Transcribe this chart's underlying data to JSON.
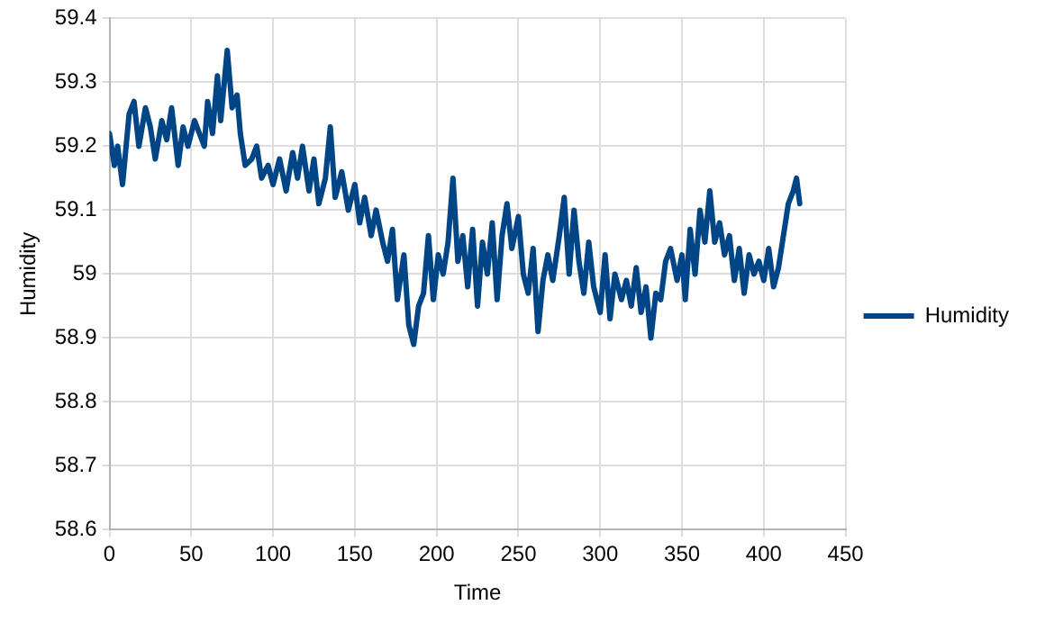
{
  "chart_data": {
    "type": "line",
    "xlabel": "Time",
    "ylabel": "Humidity",
    "xlim": [
      0,
      450
    ],
    "xticks": [
      0,
      50,
      100,
      150,
      200,
      250,
      300,
      350,
      400,
      450
    ],
    "ylim": [
      58.6,
      59.4
    ],
    "yticks": [
      58.6,
      58.7,
      58.8,
      58.9,
      59,
      59.1,
      59.2,
      59.3,
      59.4
    ],
    "grid": true,
    "legend": "right",
    "marker": "none",
    "line_style": "solid",
    "series": [
      {
        "name": "Humidity",
        "color": "#004586",
        "x": [
          0,
          3,
          5,
          8,
          12,
          15,
          18,
          22,
          25,
          28,
          32,
          35,
          38,
          42,
          45,
          48,
          52,
          55,
          58,
          60,
          63,
          66,
          68,
          72,
          75,
          78,
          80,
          83,
          87,
          90,
          93,
          97,
          100,
          104,
          108,
          112,
          115,
          118,
          122,
          125,
          128,
          132,
          135,
          138,
          142,
          146,
          150,
          153,
          156,
          160,
          163,
          167,
          170,
          173,
          176,
          180,
          183,
          186,
          189,
          192,
          195,
          198,
          201,
          204,
          207,
          210,
          213,
          216,
          219,
          222,
          225,
          228,
          231,
          234,
          237,
          240,
          243,
          246,
          250,
          253,
          256,
          259,
          262,
          265,
          268,
          271,
          275,
          278,
          281,
          284,
          287,
          290,
          293,
          296,
          300,
          303,
          306,
          309,
          313,
          316,
          319,
          322,
          325,
          328,
          331,
          334,
          337,
          340,
          343,
          347,
          350,
          352,
          355,
          358,
          361,
          364,
          367,
          370,
          373,
          376,
          379,
          382,
          385,
          388,
          391,
          394,
          397,
          400,
          403,
          406,
          409,
          412,
          415,
          418,
          420,
          422
        ],
        "values": [
          59.22,
          59.17,
          59.2,
          59.14,
          59.25,
          59.27,
          59.2,
          59.26,
          59.23,
          59.18,
          59.24,
          59.21,
          59.26,
          59.17,
          59.23,
          59.2,
          59.24,
          59.22,
          59.2,
          59.27,
          59.22,
          59.31,
          59.24,
          59.35,
          59.26,
          59.28,
          59.22,
          59.17,
          59.18,
          59.2,
          59.15,
          59.17,
          59.14,
          59.18,
          59.13,
          59.19,
          59.15,
          59.2,
          59.13,
          59.18,
          59.11,
          59.15,
          59.23,
          59.12,
          59.16,
          59.1,
          59.14,
          59.08,
          59.12,
          59.06,
          59.1,
          59.05,
          59.02,
          59.07,
          58.96,
          59.03,
          58.92,
          58.89,
          58.95,
          58.97,
          59.06,
          58.96,
          59.03,
          59,
          59.05,
          59.15,
          59.02,
          59.06,
          58.98,
          59.07,
          58.95,
          59.05,
          59,
          59.08,
          58.96,
          59.06,
          59.11,
          59.04,
          59.09,
          59,
          58.97,
          59.04,
          58.91,
          58.99,
          59.03,
          58.99,
          59.06,
          59.12,
          59,
          59.1,
          59.02,
          58.97,
          59.05,
          58.98,
          58.94,
          59.03,
          58.93,
          59,
          58.96,
          58.99,
          58.95,
          59.01,
          58.94,
          58.98,
          58.9,
          58.97,
          58.96,
          59.02,
          59.04,
          58.99,
          59.03,
          58.96,
          59.07,
          59,
          59.1,
          59.05,
          59.13,
          59.05,
          59.08,
          59.03,
          59.06,
          58.99,
          59.04,
          58.97,
          59.03,
          59,
          59.02,
          58.99,
          59.04,
          58.98,
          59.01,
          59.06,
          59.11,
          59.13,
          59.15,
          59.11
        ]
      }
    ]
  }
}
